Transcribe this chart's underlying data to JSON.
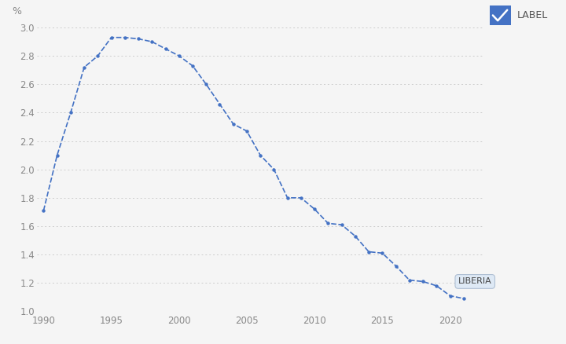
{
  "years": [
    1990,
    1991,
    1992,
    1993,
    1994,
    1995,
    1996,
    1997,
    1998,
    1999,
    2000,
    2001,
    2002,
    2003,
    2004,
    2005,
    2006,
    2007,
    2008,
    2009,
    2010,
    2011,
    2012,
    2013,
    2014,
    2015,
    2016,
    2017,
    2018,
    2019,
    2020,
    2021
  ],
  "values": [
    1.71,
    2.1,
    2.4,
    2.72,
    2.8,
    2.93,
    2.93,
    2.92,
    2.9,
    2.85,
    2.8,
    2.73,
    2.6,
    2.46,
    2.32,
    2.27,
    2.1,
    2.0,
    1.8,
    1.8,
    1.72,
    1.62,
    1.61,
    1.53,
    1.42,
    1.41,
    1.32,
    1.22,
    1.21,
    1.18,
    1.11,
    1.09
  ],
  "line_color": "#4472C4",
  "ylabel": "%",
  "ylim": [
    1.0,
    3.0
  ],
  "yticks": [
    1.0,
    1.2,
    1.4,
    1.6,
    1.8,
    2.0,
    2.2,
    2.4,
    2.6,
    2.8,
    3.0
  ],
  "xlim": [
    1989.5,
    2022.5
  ],
  "xticks": [
    1990,
    1995,
    2000,
    2005,
    2010,
    2015,
    2020
  ],
  "legend_label": "LIBERIA",
  "legend_title": "LABEL",
  "bg_color": "#f5f5f5",
  "grid_color": "#cccccc",
  "annotation_box_color": "#dce8f5",
  "annotation_box_edge": "#aabbd0"
}
